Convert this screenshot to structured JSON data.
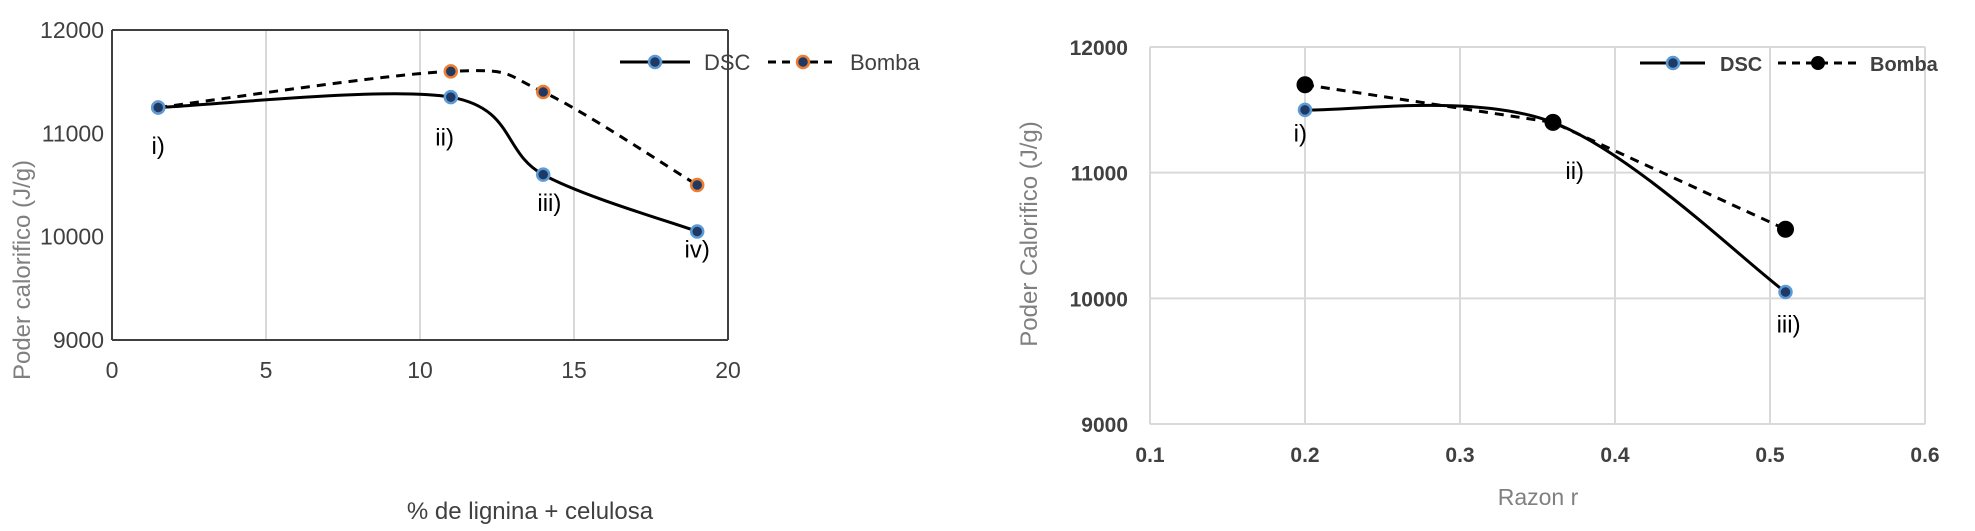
{
  "colors": {
    "grid": "#d9d9d9",
    "axis": "#404040",
    "tick_text": "#404040",
    "axis_title_left_y": "#808080",
    "axis_title_left_x": "#404040",
    "axis_title_right": "#808080",
    "dsc_line": "#000000",
    "dsc_marker_fill": "#1f3864",
    "dsc_marker_edge": "#5b9bd5",
    "bomba_line": "#000000",
    "bomba_marker_left_fill": "#1f3864",
    "bomba_marker_left_edge": "#ed7d31",
    "bomba_marker_right_fill": "#000000",
    "bomba_marker_right_edge": "#000000"
  },
  "chart_data": [
    {
      "type": "line",
      "xlabel": "% de lignina + celulosa",
      "ylabel": "Poder calorifico (J/g)",
      "xlim": [
        0,
        20
      ],
      "ylim": [
        9000,
        12000
      ],
      "xticks": [
        0,
        5,
        10,
        15,
        20
      ],
      "yticks": [
        9000,
        10000,
        11000,
        12000
      ],
      "grid": "vertical",
      "legend": "top-right",
      "series": [
        {
          "name": "DSC",
          "style": "solid",
          "smooth": true,
          "x": [
            1.5,
            11,
            14,
            19
          ],
          "y": [
            11250,
            11350,
            10600,
            10050
          ]
        },
        {
          "name": "Bomba",
          "style": "dashed",
          "smooth": true,
          "x": [
            1.5,
            11,
            14,
            19
          ],
          "y": [
            11250,
            11600,
            11400,
            10500
          ]
        }
      ],
      "annotations": [
        {
          "text": "i)",
          "x": 1.5,
          "y": 10800
        },
        {
          "text": "ii)",
          "x": 10.8,
          "y": 10880
        },
        {
          "text": "iii)",
          "x": 14.2,
          "y": 10250
        },
        {
          "text": "iv)",
          "x": 19,
          "y": 9800
        }
      ]
    },
    {
      "type": "line",
      "xlabel": "Razon r",
      "ylabel": "Poder Calorifico (J/g)",
      "xlim": [
        0.1,
        0.6
      ],
      "ylim": [
        9000,
        12000
      ],
      "xticks": [
        "0.1",
        "0.2",
        "0.3",
        "0.4",
        "0.5",
        "0.6"
      ],
      "yticks": [
        9000,
        10000,
        11000,
        12000
      ],
      "grid": "both",
      "legend": "top-right",
      "series": [
        {
          "name": "DSC",
          "style": "solid",
          "smooth": true,
          "x": [
            0.2,
            0.36,
            0.51
          ],
          "y": [
            11500,
            11400,
            10050
          ]
        },
        {
          "name": "Bomba",
          "style": "dashed",
          "smooth": false,
          "x": [
            0.2,
            0.36,
            0.51
          ],
          "y": [
            11700,
            11400,
            10550
          ]
        }
      ],
      "annotations": [
        {
          "text": "i)",
          "x": 0.197,
          "y": 11250
        },
        {
          "text": "ii)",
          "x": 0.374,
          "y": 10950
        },
        {
          "text": "iii)",
          "x": 0.512,
          "y": 9730
        }
      ]
    }
  ]
}
